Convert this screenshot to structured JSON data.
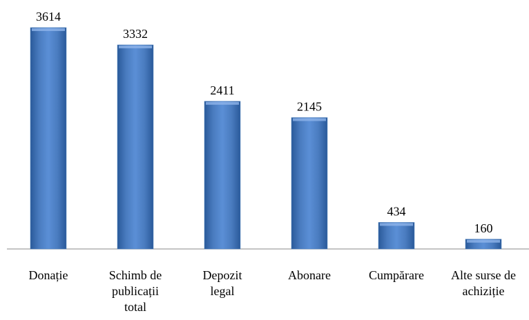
{
  "chart_data": {
    "type": "bar",
    "categories": [
      "Donație",
      "Schimb de\npublicații\ntotal",
      "Depozit\nlegal",
      "Abonare",
      "Cumpărare",
      "Alte surse de\nachiziție"
    ],
    "values": [
      3614,
      3332,
      2411,
      2145,
      434,
      160
    ],
    "color": "#4f81bd"
  }
}
